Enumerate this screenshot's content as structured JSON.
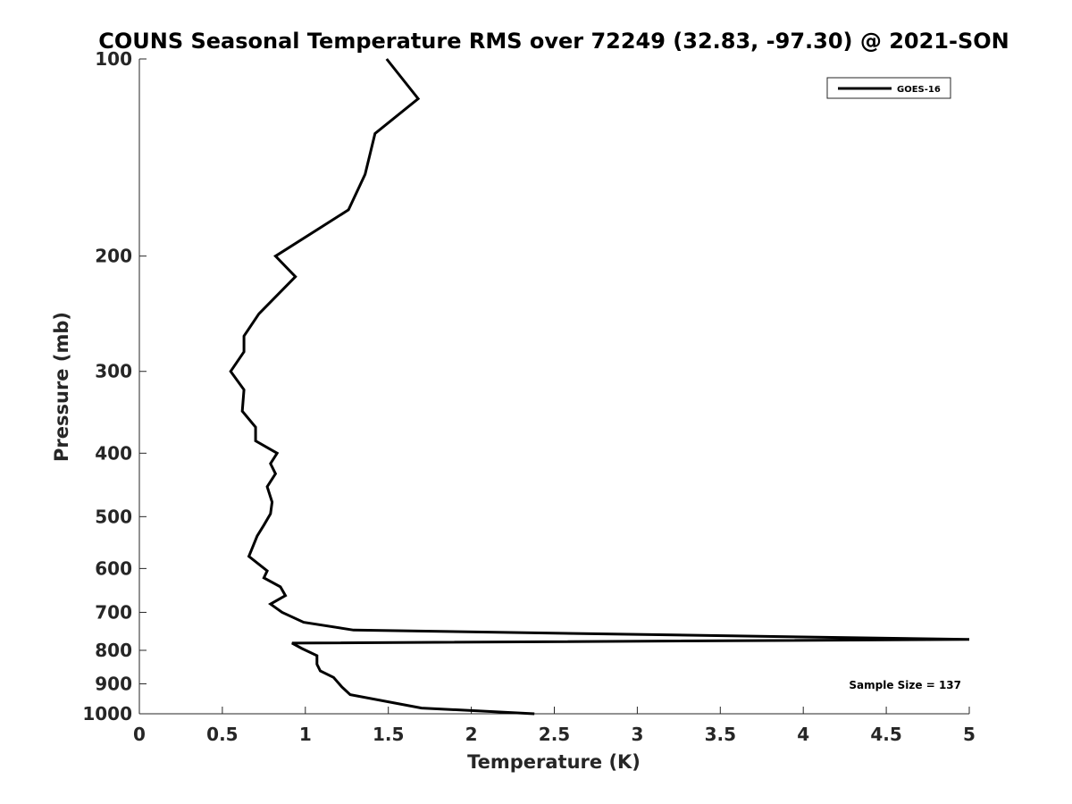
{
  "chart_data": {
    "type": "line",
    "title": "COUNS Seasonal Temperature RMS over 72249 (32.83, -97.30) @ 2021-SON",
    "xlabel": "Temperature (K)",
    "ylabel": "Pressure (mb)",
    "xlim": [
      0,
      5
    ],
    "ylim": [
      100,
      1000
    ],
    "yscale": "log",
    "yreversed": true,
    "xticks": [
      0,
      0.5,
      1,
      1.5,
      2,
      2.5,
      3,
      3.5,
      4,
      4.5,
      5
    ],
    "xtick_labels": [
      "0",
      "0.5",
      "1",
      "1.5",
      "2",
      "2.5",
      "3",
      "3.5",
      "4",
      "4.5",
      "5"
    ],
    "yticks": [
      100,
      200,
      300,
      400,
      500,
      600,
      700,
      800,
      900,
      1000
    ],
    "ytick_labels": [
      "100",
      "200",
      "300",
      "400",
      "500",
      "600",
      "700",
      "800",
      "900",
      "1000"
    ],
    "grid": false,
    "legend_position": "top-right",
    "annotation": "Sample Size = 137",
    "series": [
      {
        "name": "GOES-16",
        "color": "#000000",
        "points": [
          [
            1.49,
            100
          ],
          [
            1.68,
            115
          ],
          [
            1.42,
            130
          ],
          [
            1.36,
            150
          ],
          [
            1.26,
            170
          ],
          [
            0.82,
            200
          ],
          [
            0.94,
            215
          ],
          [
            0.72,
            245
          ],
          [
            0.63,
            265
          ],
          [
            0.63,
            280
          ],
          [
            0.55,
            300
          ],
          [
            0.63,
            320
          ],
          [
            0.62,
            345
          ],
          [
            0.7,
            365
          ],
          [
            0.7,
            383
          ],
          [
            0.83,
            400
          ],
          [
            0.79,
            415
          ],
          [
            0.82,
            430
          ],
          [
            0.77,
            450
          ],
          [
            0.8,
            475
          ],
          [
            0.79,
            495
          ],
          [
            0.75,
            515
          ],
          [
            0.71,
            535
          ],
          [
            0.66,
            575
          ],
          [
            0.77,
            605
          ],
          [
            0.75,
            620
          ],
          [
            0.85,
            640
          ],
          [
            0.88,
            660
          ],
          [
            0.79,
            680
          ],
          [
            0.86,
            700
          ],
          [
            0.99,
            725
          ],
          [
            1.29,
            745
          ],
          [
            5.0,
            770
          ],
          [
            0.92,
            780
          ],
          [
            0.98,
            795
          ],
          [
            1.07,
            815
          ],
          [
            1.07,
            840
          ],
          [
            1.09,
            860
          ],
          [
            1.17,
            880
          ],
          [
            1.22,
            910
          ],
          [
            1.27,
            935
          ],
          [
            1.7,
            980
          ],
          [
            2.38,
            1000
          ]
        ]
      }
    ]
  }
}
